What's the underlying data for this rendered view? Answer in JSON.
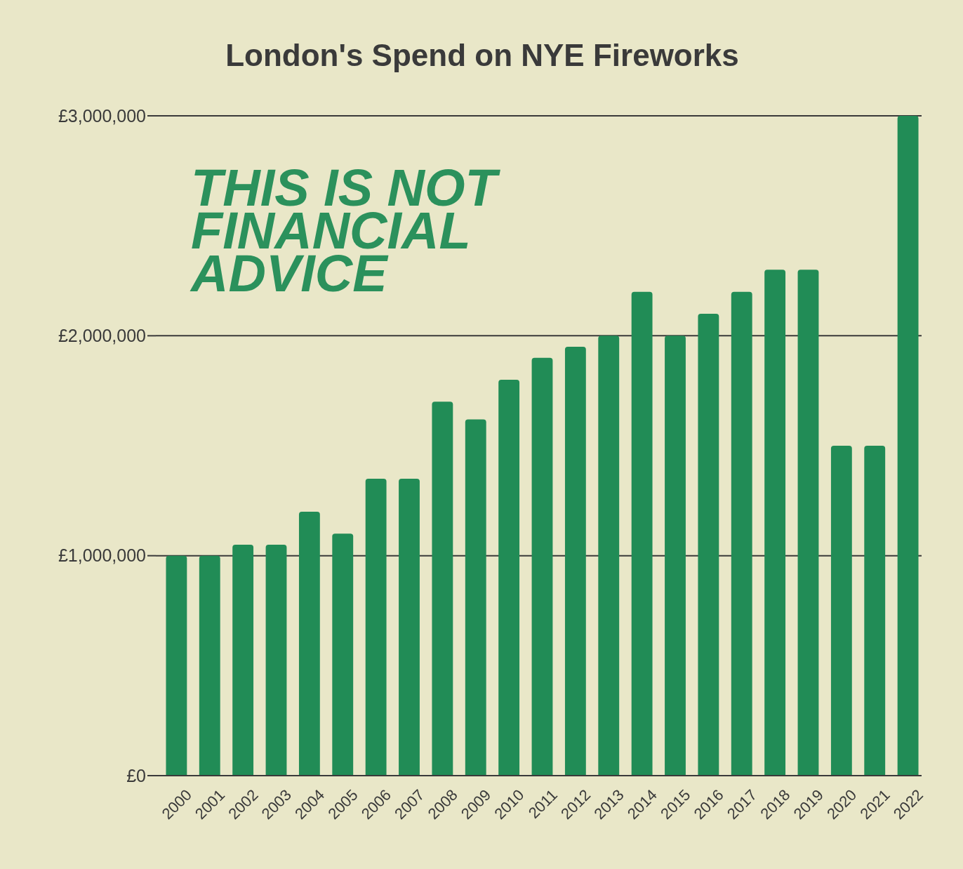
{
  "chart_data": {
    "type": "bar",
    "title": "London's Spend on NYE Fireworks",
    "categories": [
      "2000",
      "2001",
      "2002",
      "2003",
      "2004",
      "2005",
      "2006",
      "2007",
      "2008",
      "2009",
      "2010",
      "2011",
      "2012",
      "2013",
      "2014",
      "2015",
      "2016",
      "2017",
      "2018",
      "2019",
      "2020",
      "2021",
      "2022"
    ],
    "values": [
      1000000,
      1000000,
      1050000,
      1050000,
      1200000,
      1100000,
      1350000,
      1350000,
      1700000,
      1620000,
      1800000,
      1900000,
      1950000,
      2000000,
      2200000,
      2000000,
      2100000,
      2200000,
      2300000,
      2300000,
      1500000,
      1500000,
      3000000
    ],
    "color": "#218c56",
    "ylim": [
      0,
      3000000
    ],
    "yticks": [
      {
        "value": 0,
        "label": "£0"
      },
      {
        "value": 1000000,
        "label": "£1,000,000"
      },
      {
        "value": 2000000,
        "label": "£2,000,000"
      },
      {
        "value": 3000000,
        "label": "£3,000,000"
      }
    ],
    "grid": "y",
    "annotations": [
      "THIS IS NOT FINANCIAL ADVICE"
    ]
  }
}
